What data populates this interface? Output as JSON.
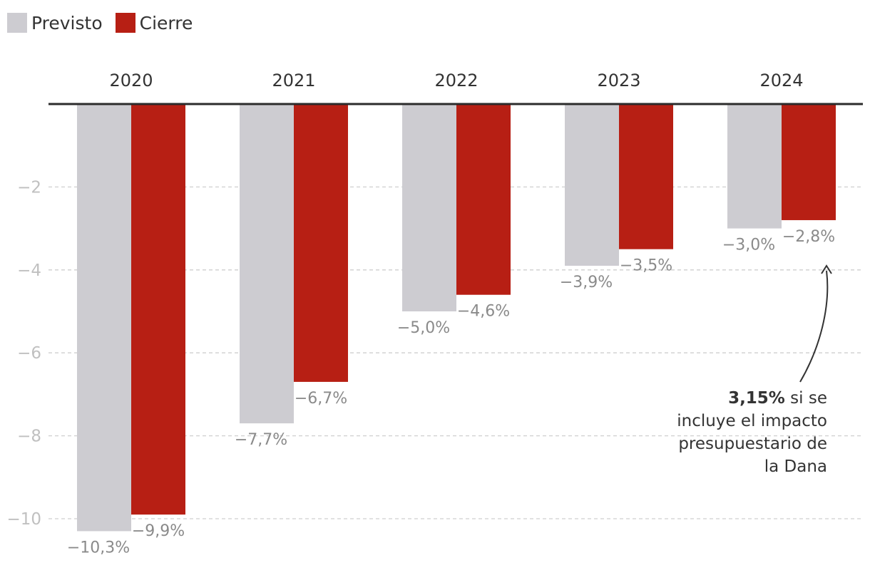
{
  "chart_data": {
    "type": "bar",
    "categories": [
      "2020",
      "2021",
      "2022",
      "2023",
      "2024"
    ],
    "series": [
      {
        "name": "Previsto",
        "color": "#cdccd1",
        "values": [
          -10.3,
          -7.7,
          -5.0,
          -3.9,
          -3.0
        ],
        "labels": [
          "−10,3%",
          "−7,7%",
          "−5,0%",
          "−3,9%",
          "−3,0%"
        ]
      },
      {
        "name": "Cierre",
        "color": "#b71f14",
        "values": [
          -9.9,
          -6.7,
          -4.6,
          -3.5,
          -2.8
        ],
        "labels": [
          "−9,9%",
          "−6,7%",
          "−4,6%",
          "−3,5%",
          "−2,8%"
        ]
      }
    ],
    "ylim": [
      -10.5,
      0
    ],
    "yticks": [
      -2,
      -4,
      -6,
      -8,
      -10
    ],
    "ytick_labels": [
      "−2",
      "−4",
      "−6",
      "−8",
      "−10"
    ],
    "grid": true,
    "legend_position": "top-left",
    "annotation": {
      "bold": "3,15%",
      "lines": [
        " si se",
        "incluye el impacto",
        "presupuestario de",
        "la Dana"
      ],
      "target_category": "2024"
    }
  }
}
